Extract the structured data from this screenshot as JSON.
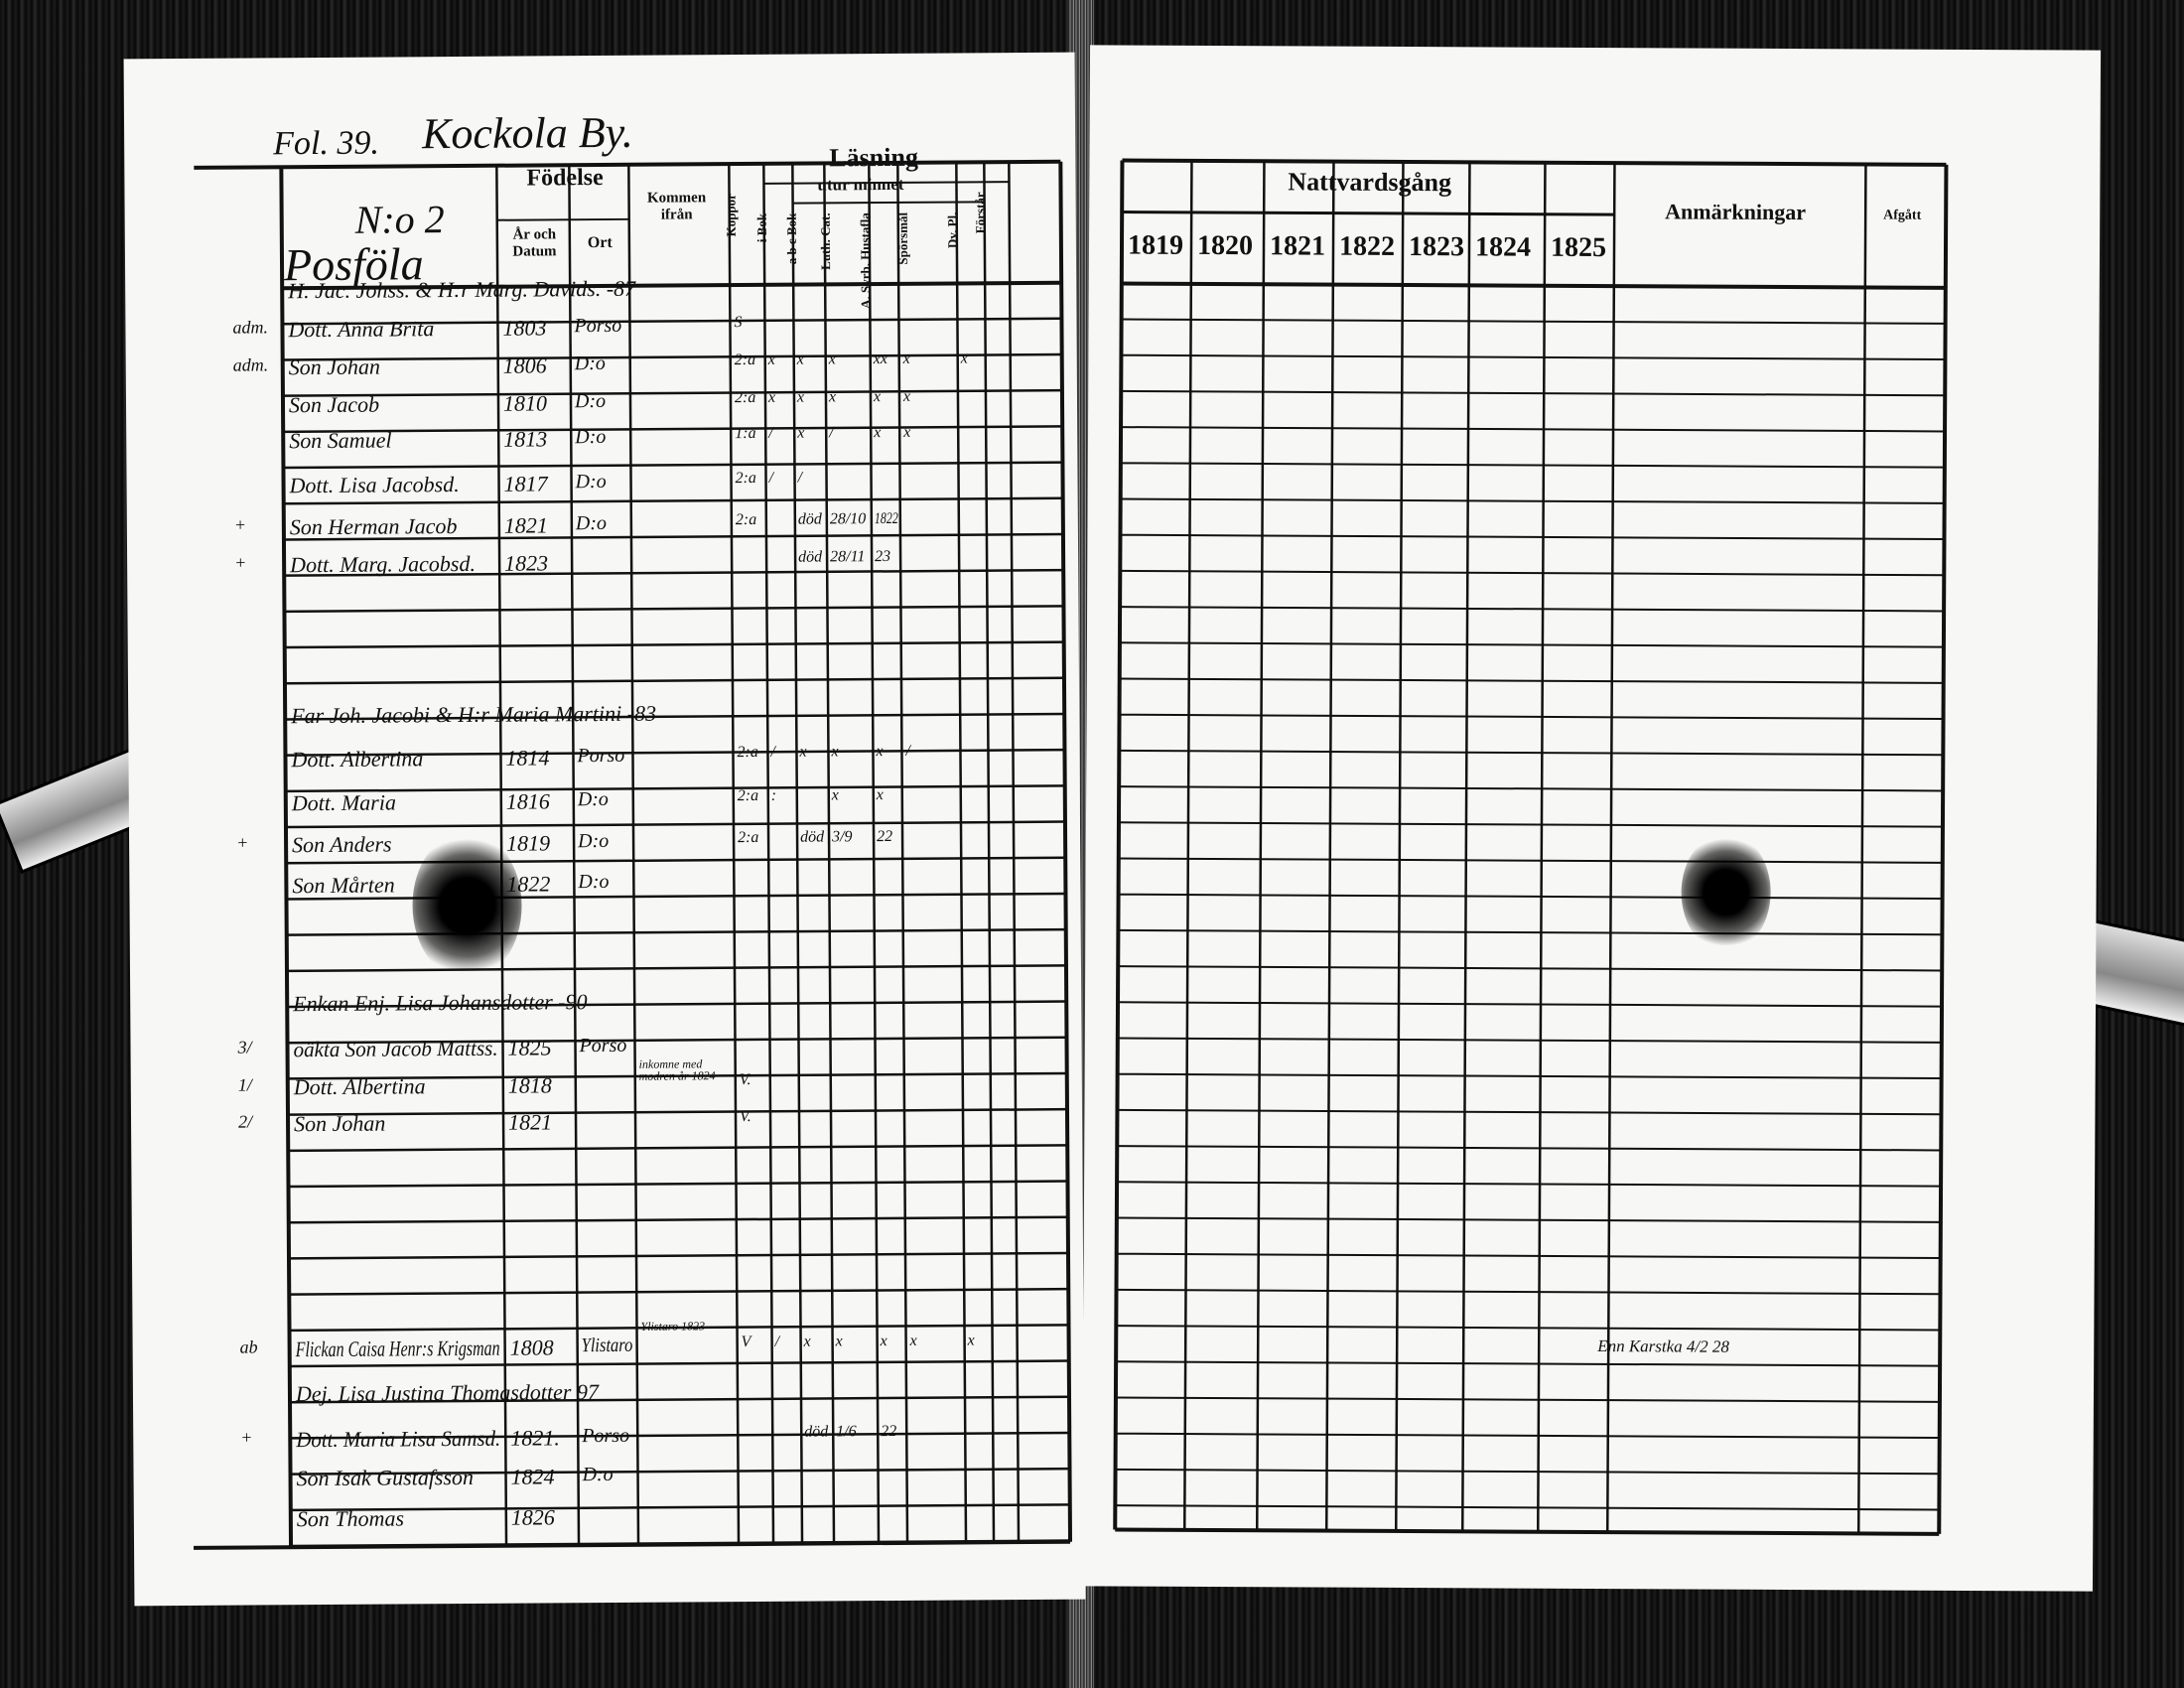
{
  "left_page": {
    "folio": "Fol. 39.",
    "village": "Kockola By.",
    "house_number": "N:o 2",
    "house_name": "Posföla",
    "headers": {
      "fodelse": "Födelse",
      "ar_och_datum": "År och Datum",
      "ort": "Ort",
      "kommen_ifran": "Kommen ifrån",
      "koppor": "Koppor",
      "lasning": "Läsning",
      "utur_minnet": "utur minnet",
      "i_bok": "i Bok",
      "abc_bok": "a b c Bok",
      "luth_cat": "Luth. Cat.",
      "a_syrb_hustafla": "A. Syrb. Hustafla",
      "sporsmal": "Spörsmål",
      "dv_pl": "Dv. Pl.",
      "forstar": "Förstår"
    },
    "rows": [
      {
        "margin": "",
        "name": "H. Jac. Johss. & H:r Marg. Davids. -87",
        "date": "",
        "place": "",
        "from": "",
        "marks": []
      },
      {
        "margin": "adm.",
        "name": "Dott. Anna Brita",
        "date": "1803",
        "place": "Porso",
        "from": "",
        "marks": [
          "S"
        ]
      },
      {
        "margin": "adm.",
        "name": "Son Johan",
        "date": "1806",
        "place": "D:o",
        "from": "",
        "marks": [
          "2:a",
          "x",
          "x",
          "x",
          "xx",
          "x",
          "x",
          ""
        ]
      },
      {
        "margin": "",
        "name": "Son Jacob",
        "date": "1810",
        "place": "D:o",
        "from": "",
        "marks": [
          "2:a",
          "x",
          "x",
          "x",
          "x",
          "x",
          "",
          ""
        ]
      },
      {
        "margin": "",
        "name": "Son Samuel",
        "date": "1813",
        "place": "D:o",
        "from": "",
        "marks": [
          "1:a",
          "/",
          "x",
          "/",
          "x",
          "x",
          "",
          ""
        ]
      },
      {
        "margin": "",
        "name": "Dott. Lisa Jacobsd.",
        "date": "1817",
        "place": "D:o",
        "from": "",
        "marks": [
          "2:a",
          "/",
          "/",
          "",
          "",
          "",
          "",
          ""
        ]
      },
      {
        "margin": "+",
        "name": "Son Herman Jacob",
        "date": "1821",
        "place": "D:o",
        "from": "",
        "marks": [
          "2:a",
          "",
          "död",
          "28/10",
          "1822",
          "",
          "",
          ""
        ]
      },
      {
        "margin": "+",
        "name": "Dott. Marg. Jacobsd.",
        "date": "1823",
        "place": "",
        "from": "",
        "marks": [
          "",
          "",
          "död",
          "28/11",
          "23",
          "",
          "",
          ""
        ]
      },
      {
        "margin": "",
        "name": "Far Joh. Jacobi & H:r Maria Martini -83",
        "date": "",
        "place": "",
        "from": "",
        "marks": []
      },
      {
        "margin": "",
        "name": "Dott. Albertina",
        "date": "1814",
        "place": "Porso",
        "from": "",
        "marks": [
          "2:a",
          "/",
          "x",
          "x",
          "x",
          "/",
          "",
          ""
        ]
      },
      {
        "margin": "",
        "name": "Dott. Maria",
        "date": "1816",
        "place": "D:o",
        "from": "",
        "marks": [
          "2:a",
          ":",
          "",
          "x",
          "x",
          "",
          "",
          ""
        ]
      },
      {
        "margin": "+",
        "name": "Son Anders",
        "date": "1819",
        "place": "D:o",
        "from": "",
        "marks": [
          "2:a",
          "",
          "död",
          "3/9",
          "22",
          "",
          "",
          ""
        ]
      },
      {
        "margin": "",
        "name": "Son Mårten",
        "date": "1822",
        "place": "D:o",
        "from": "",
        "marks": []
      },
      {
        "margin": "",
        "name": "Enkan Enj. Lisa Johansdotter -90",
        "date": "",
        "place": "",
        "from": "",
        "marks": []
      },
      {
        "margin": "3/",
        "name": "oäkta Son Jacob Mattss.",
        "date": "1825",
        "place": "Porso",
        "from": "",
        "marks": []
      },
      {
        "margin": "1/",
        "name": "Dott. Albertina",
        "date": "1818",
        "place": "",
        "from": "inkomne med modren år 1824",
        "marks": [
          "V."
        ]
      },
      {
        "margin": "2/",
        "name": "Son Johan",
        "date": "1821",
        "place": "",
        "from": "",
        "marks": [
          "V."
        ]
      },
      {
        "margin": "ab",
        "name": "Flickan Caisa Henr:s Krigsman",
        "date": "1808",
        "place": "Ylistaro",
        "from": "Ylistaro 1823",
        "marks": [
          "V",
          "/",
          "x",
          "x",
          "x",
          "x",
          "x",
          ""
        ]
      },
      {
        "margin": "",
        "name": "Dej. Lisa Justina Thomasdotter 97",
        "date": "",
        "place": "",
        "from": "",
        "marks": []
      },
      {
        "margin": "+",
        "name": "Dott. Maria Lisa Samsd.",
        "date": "1821.",
        "place": "Porso",
        "from": "",
        "marks": [
          "",
          "",
          "död",
          "1/6",
          "22",
          "",
          "",
          ""
        ]
      },
      {
        "margin": "",
        "name": "Son Isak Gustafsson",
        "date": "1824",
        "place": "D:o",
        "from": "",
        "marks": []
      },
      {
        "margin": "",
        "name": "Son Thomas",
        "date": "1826",
        "place": "",
        "from": "",
        "marks": []
      }
    ]
  },
  "right_page": {
    "nattvardsgang": "Nattvardsgång",
    "years": [
      "1819",
      "1820",
      "1821",
      "1822",
      "1823",
      "1824",
      "1825"
    ],
    "anmarkningar": "Anmärkningar",
    "afgatt": "Afgått",
    "note": "Enn Karstka 4/2 28"
  }
}
